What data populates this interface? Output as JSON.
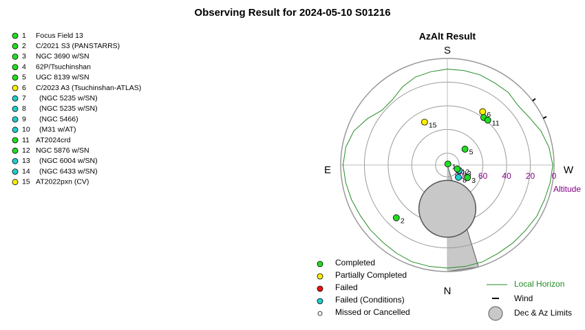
{
  "chart_data": {
    "type": "polar",
    "title": "Observing Result for 2024-05-10 S01216",
    "subtitle": "AzAlt Result",
    "directions": {
      "S": "S",
      "N": "N",
      "E": "E",
      "W": "W"
    },
    "altitude_label": "Altitude",
    "rings": [
      0,
      20,
      40,
      60,
      80
    ],
    "status_colors": {
      "completed": "#22dd22",
      "partial": "#ffee00",
      "failed": "#ee1111",
      "failed_conditions": "#22cccc",
      "missed": "#ffffff"
    },
    "targets": [
      {
        "number": "1",
        "name": "Focus Field 13",
        "status": "completed"
      },
      {
        "number": "2",
        "name": "C/2021 S3 (PANSTARRS)",
        "status": "completed"
      },
      {
        "number": "3",
        "name": "NGC 3690 w/SN",
        "status": "completed"
      },
      {
        "number": "4",
        "name": "62P/Tsuchinshan",
        "status": "completed"
      },
      {
        "number": "5",
        "name": "UGC 8139 w/SN",
        "status": "completed"
      },
      {
        "number": "6",
        "name": "C/2023 A3 (Tsuchinshan-ATLAS)",
        "status": "partial"
      },
      {
        "number": "7",
        "name": "(NGC 5235 w/SN)",
        "status": "failed_conditions"
      },
      {
        "number": "8",
        "name": "(NGC 5235 w/SN)",
        "status": "failed_conditions"
      },
      {
        "number": "9",
        "name": "(NGC 5466)",
        "status": "failed_conditions"
      },
      {
        "number": "10",
        "name": "(M31 w/AT)",
        "status": "failed_conditions"
      },
      {
        "number": "11",
        "name": "AT2024crd",
        "status": "completed"
      },
      {
        "number": "12",
        "name": "NGC 5876 w/SN",
        "status": "completed"
      },
      {
        "number": "13",
        "name": "(NGC 6004 w/SN)",
        "status": "failed_conditions"
      },
      {
        "number": "14",
        "name": "(NGC 6433 w/SN)",
        "status": "failed_conditions"
      },
      {
        "number": "15",
        "name": "AT2022pxn (CV)",
        "status": "partial"
      }
    ],
    "points": [
      {
        "label": "2",
        "alt": 28,
        "az": 44,
        "status": "completed"
      },
      {
        "label": "15",
        "alt": 49,
        "az": 152,
        "status": "partial"
      },
      {
        "label": "6",
        "alt": 36,
        "az": 213.5,
        "status": "partial"
      },
      {
        "label": null,
        "alt": 39.5,
        "az": 217.5,
        "status": "completed"
      },
      {
        "label": "11",
        "alt": 39,
        "az": 222,
        "status": "completed"
      },
      {
        "label": "5",
        "alt": 70,
        "az": 228,
        "status": "completed"
      },
      {
        "label": "1",
        "alt": 89,
        "az": 207,
        "status": "completed"
      },
      {
        "label": "8",
        "alt": 76,
        "az": 318,
        "status": "failed_conditions"
      },
      {
        "label": "13",
        "alt": 79,
        "az": 295,
        "status": "failed_conditions"
      },
      {
        "label": "12",
        "alt": 81,
        "az": 292,
        "status": "completed"
      },
      {
        "label": "3",
        "alt": 70,
        "az": 302,
        "status": "completed"
      }
    ],
    "horizon": {
      "az": [
        0,
        10,
        20,
        30,
        40,
        50,
        60,
        70,
        80,
        90,
        100,
        110,
        120,
        130,
        140,
        150,
        160,
        170,
        180,
        190,
        200,
        210,
        220,
        230,
        240,
        250,
        260,
        270,
        280,
        290,
        300,
        310,
        320,
        330,
        340,
        350,
        360
      ],
      "alt": [
        3,
        3,
        3,
        4,
        5,
        5,
        5,
        4,
        3,
        2,
        3,
        6,
        12,
        18,
        18,
        14,
        11,
        10,
        9,
        9,
        9,
        10,
        10,
        12,
        10,
        6,
        3,
        1,
        2,
        3,
        3,
        4,
        4,
        4,
        3,
        3,
        3
      ],
      "color": "#228b22"
    },
    "wind_az": [
      233,
      244
    ],
    "az_limit": {
      "az_from": 343,
      "az_to": 360
    },
    "dec_limit": {
      "center_alt": 53,
      "center_az": 0,
      "radius_deg": 24
    },
    "legend": [
      {
        "label": "Completed",
        "status": "completed"
      },
      {
        "label": "Partially Completed",
        "status": "partial"
      },
      {
        "label": "Failed",
        "status": "failed"
      },
      {
        "label": "Failed (Conditions)",
        "status": "failed_conditions"
      },
      {
        "label": "Missed or Cancelled",
        "status": "missed"
      }
    ],
    "legend2": {
      "horizon": "Local Horizon",
      "wind": "Wind",
      "limits": "Dec & Az Limits"
    }
  }
}
